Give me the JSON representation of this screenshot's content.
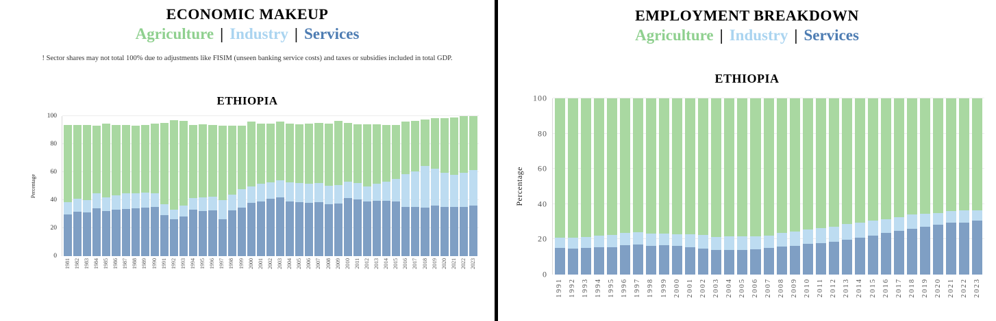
{
  "legend": {
    "agriculture": "Agriculture",
    "industry": "Industry",
    "services": "Services",
    "separator": "|"
  },
  "colors": {
    "bar_agriculture": "#a9d8a1",
    "bar_industry": "#bddcf1",
    "bar_services": "#7f9fc4",
    "text_agriculture": "#8fd08f",
    "text_industry": "#aad4f0",
    "text_services": "#4d7cb2",
    "divider": "#000000"
  },
  "left_panel": {
    "title": "ECONOMIC MAKEUP",
    "note": "! Sector shares may not total 100% due to adjustments like FISIM (unseen banking service costs) and taxes or subsidies included in total GDP."
  },
  "right_panel": {
    "title": "EMPLOYMENT BREAKDOWN"
  },
  "chart_data": [
    {
      "type": "bar",
      "stacked": true,
      "title": "ETHIOPIA",
      "xlabel": "",
      "ylabel": "Percentage",
      "ylim": [
        0,
        100
      ],
      "yticks": [
        0,
        20,
        40,
        60,
        80,
        100
      ],
      "grid": true,
      "legend_position": "panel-header",
      "categories": [
        "1981",
        "1982",
        "1983",
        "1984",
        "1985",
        "1986",
        "1987",
        "1988",
        "1989",
        "1990",
        "1991",
        "1992",
        "1993",
        "1994",
        "1995",
        "1996",
        "1997",
        "1998",
        "1999",
        "2000",
        "2001",
        "2002",
        "2003",
        "2004",
        "2005",
        "2006",
        "2007",
        "2008",
        "2009",
        "2010",
        "2011",
        "2012",
        "2013",
        "2014",
        "2015",
        "2016",
        "2017",
        "2018",
        "2019",
        "2020",
        "2021",
        "2022",
        "2023"
      ],
      "series": [
        {
          "name": "Services",
          "color": "#7f9fc4",
          "values": [
            30,
            32,
            31.5,
            34.5,
            32.5,
            33.5,
            34,
            34.5,
            35,
            35.5,
            29.5,
            26.5,
            28.5,
            33.5,
            32.5,
            33,
            26.5,
            33,
            35,
            38,
            39,
            41,
            42,
            39,
            38.5,
            38,
            38.5,
            37,
            37.5,
            41.5,
            40.5,
            39,
            39.5,
            39.5,
            39,
            35.5,
            35.5,
            35,
            36,
            35.5,
            35.5,
            35.5,
            36
          ]
        },
        {
          "name": "Industry",
          "color": "#bddcf1",
          "values": [
            8.5,
            9,
            8.5,
            10.5,
            9.5,
            10,
            11,
            10.5,
            10.5,
            9.5,
            7.5,
            7,
            7.5,
            8,
            9.5,
            9.5,
            13.5,
            11,
            13,
            12,
            13,
            12,
            12.5,
            14,
            14,
            14,
            14,
            13.5,
            13.5,
            12,
            12,
            11,
            12.5,
            14,
            16.5,
            23,
            25,
            29.5,
            26.5,
            24,
            22.5,
            24,
            25.5
          ]
        },
        {
          "name": "Agriculture",
          "color": "#a9d8a1",
          "values": [
            55.5,
            53,
            54,
            48.5,
            53,
            50.5,
            49,
            48.5,
            48.5,
            50,
            58.5,
            63.5,
            60.5,
            52.5,
            52.5,
            51.5,
            53.5,
            49.5,
            45.5,
            46,
            43,
            42,
            41.5,
            42,
            42,
            43,
            43,
            44.5,
            45.5,
            42,
            42,
            44.5,
            42.5,
            40.5,
            38.5,
            37.5,
            36,
            33,
            36,
            39,
            41,
            40.5,
            38.5
          ]
        }
      ]
    },
    {
      "type": "bar",
      "stacked": true,
      "title": "ETHIOPIA",
      "xlabel": "",
      "ylabel": "Percentage",
      "ylim": [
        0,
        100
      ],
      "yticks": [
        0,
        20,
        40,
        60,
        80,
        100
      ],
      "grid": true,
      "legend_position": "panel-header",
      "categories": [
        "1991",
        "1992",
        "1993",
        "1994",
        "1995",
        "1996",
        "1997",
        "1998",
        "1999",
        "2000",
        "2001",
        "2002",
        "2003",
        "2004",
        "2005",
        "2006",
        "2007",
        "2008",
        "2009",
        "2010",
        "2011",
        "2012",
        "2013",
        "2014",
        "2015",
        "2016",
        "2017",
        "2018",
        "2019",
        "2020",
        "2021",
        "2022",
        "2023"
      ],
      "series": [
        {
          "name": "Services",
          "color": "#7f9fc4",
          "values": [
            15.3,
            14.8,
            15.0,
            15.6,
            15.6,
            16.5,
            17.0,
            16.1,
            16.5,
            16.1,
            15.7,
            14.9,
            13.9,
            14.1,
            13.9,
            14.3,
            15.0,
            15.8,
            16.2,
            17.5,
            18.0,
            18.6,
            19.7,
            20.9,
            22.2,
            23.7,
            25.0,
            25.8,
            27.3,
            28.2,
            29.6,
            29.5,
            30.5
          ]
        },
        {
          "name": "Industry",
          "color": "#bddcf1",
          "values": [
            5.8,
            6.2,
            6.3,
            6.4,
            6.9,
            7.1,
            7.0,
            7.2,
            6.9,
            6.9,
            7.2,
            7.4,
            7.5,
            7.8,
            7.8,
            7.3,
            7.2,
            7.7,
            8.2,
            7.9,
            8.4,
            8.7,
            8.9,
            8.6,
            8.3,
            7.8,
            7.7,
            8.2,
            7.3,
            6.8,
            6.3,
            6.8,
            6.0
          ]
        },
        {
          "name": "Agriculture",
          "color": "#a9d8a1",
          "values": [
            78.9,
            79.0,
            78.7,
            78.0,
            77.5,
            76.4,
            76.0,
            76.7,
            76.6,
            77.0,
            77.1,
            77.7,
            78.6,
            78.1,
            78.3,
            78.4,
            77.8,
            76.5,
            75.6,
            74.6,
            73.6,
            72.7,
            71.4,
            70.5,
            69.5,
            68.5,
            67.3,
            66.0,
            65.4,
            65.0,
            64.1,
            63.7,
            63.5
          ]
        }
      ]
    }
  ]
}
